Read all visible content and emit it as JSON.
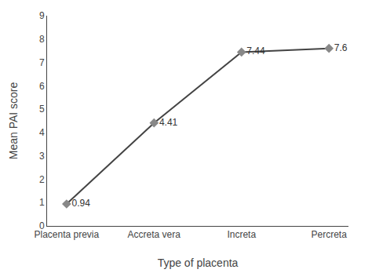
{
  "chart_data": {
    "type": "line",
    "categories": [
      "Placenta previa",
      "Accreta vera",
      "Increta",
      "Percreta"
    ],
    "values": [
      0.94,
      4.41,
      7.44,
      7.6
    ],
    "xlabel": "Type of placenta",
    "ylabel": "Mean PAI score",
    "ylim": [
      0,
      9
    ],
    "yticks": [
      0,
      1,
      2,
      3,
      4,
      5,
      6,
      7,
      8,
      9
    ],
    "color": "#444444",
    "colors": [
      "#888888",
      "#888888",
      "#888888",
      "#888888"
    ],
    "marker": "diamond",
    "data_labels": true,
    "grid": false
  }
}
